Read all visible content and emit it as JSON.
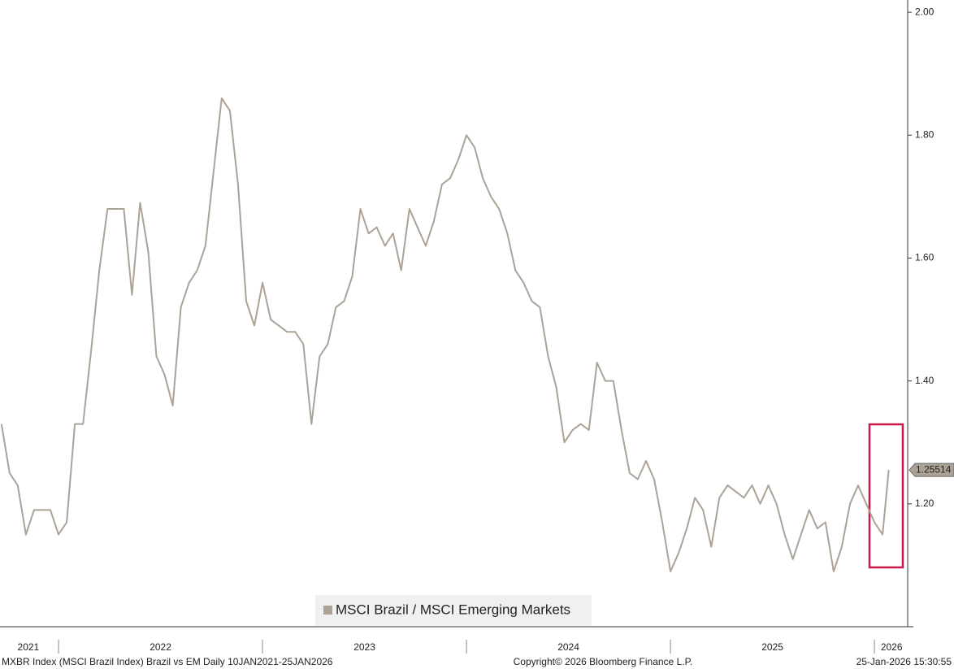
{
  "chart_data": {
    "type": "line",
    "x": [
      2021.72,
      2021.76,
      2021.8,
      2021.84,
      2021.88,
      2021.92,
      2021.96,
      2022.0,
      2022.04,
      2022.08,
      2022.12,
      2022.16,
      2022.2,
      2022.24,
      2022.28,
      2022.32,
      2022.36,
      2022.4,
      2022.44,
      2022.48,
      2022.52,
      2022.56,
      2022.6,
      2022.64,
      2022.68,
      2022.72,
      2022.76,
      2022.8,
      2022.84,
      2022.88,
      2022.92,
      2022.96,
      2023.0,
      2023.04,
      2023.08,
      2023.12,
      2023.16,
      2023.2,
      2023.24,
      2023.28,
      2023.32,
      2023.36,
      2023.4,
      2023.44,
      2023.48,
      2023.52,
      2023.56,
      2023.6,
      2023.64,
      2023.68,
      2023.72,
      2023.76,
      2023.8,
      2023.84,
      2023.88,
      2023.92,
      2023.96,
      2024.0,
      2024.04,
      2024.08,
      2024.12,
      2024.16,
      2024.2,
      2024.24,
      2024.28,
      2024.32,
      2024.36,
      2024.4,
      2024.44,
      2024.48,
      2024.52,
      2024.56,
      2024.6,
      2024.64,
      2024.68,
      2024.72,
      2024.76,
      2024.8,
      2024.84,
      2024.88,
      2024.92,
      2024.96,
      2025.0,
      2025.04,
      2025.08,
      2025.12,
      2025.16,
      2025.2,
      2025.24,
      2025.28,
      2025.32,
      2025.36,
      2025.4,
      2025.44,
      2025.48,
      2025.52,
      2025.56,
      2025.6,
      2025.64,
      2025.68,
      2025.72,
      2025.76,
      2025.8,
      2025.84,
      2025.88,
      2025.92,
      2025.96,
      2026.0,
      2026.04,
      2026.07
    ],
    "series": [
      {
        "name": "MSCI Brazil / MSCI Emerging Markets",
        "color": "#ada296",
        "values": [
          1.33,
          1.25,
          1.23,
          1.15,
          1.19,
          1.19,
          1.19,
          1.15,
          1.17,
          1.33,
          1.33,
          1.45,
          1.58,
          1.68,
          1.68,
          1.68,
          1.54,
          1.69,
          1.61,
          1.44,
          1.41,
          1.36,
          1.52,
          1.56,
          1.58,
          1.62,
          1.74,
          1.86,
          1.84,
          1.72,
          1.53,
          1.49,
          1.56,
          1.5,
          1.49,
          1.48,
          1.48,
          1.46,
          1.33,
          1.44,
          1.46,
          1.52,
          1.53,
          1.57,
          1.68,
          1.64,
          1.65,
          1.62,
          1.64,
          1.58,
          1.68,
          1.65,
          1.62,
          1.66,
          1.72,
          1.73,
          1.76,
          1.8,
          1.78,
          1.73,
          1.7,
          1.68,
          1.64,
          1.58,
          1.56,
          1.53,
          1.52,
          1.44,
          1.39,
          1.3,
          1.32,
          1.33,
          1.32,
          1.43,
          1.4,
          1.4,
          1.32,
          1.25,
          1.24,
          1.27,
          1.24,
          1.17,
          1.09,
          1.12,
          1.16,
          1.21,
          1.19,
          1.13,
          1.21,
          1.23,
          1.22,
          1.21,
          1.23,
          1.2,
          1.23,
          1.2,
          1.15,
          1.11,
          1.15,
          1.19,
          1.16,
          1.17,
          1.09,
          1.13,
          1.2,
          1.23,
          1.2,
          1.17,
          1.15,
          1.25514
        ]
      }
    ],
    "xlim": [
      2021.713,
      2026.163
    ],
    "xticks": [
      {
        "value": 2021.852,
        "label": "2021"
      },
      {
        "value": 2022.5,
        "label": "2022"
      },
      {
        "value": 2023.5,
        "label": "2023"
      },
      {
        "value": 2024.5,
        "label": "2024"
      },
      {
        "value": 2025.5,
        "label": "2025"
      },
      {
        "value": 2026.084,
        "label": "2026"
      }
    ],
    "year_separators": [
      2022,
      2023,
      2024,
      2025,
      2026
    ],
    "ylim": [
      1.0,
      2.02
    ],
    "yticks": [
      {
        "value": 1.2,
        "label": "1.20"
      },
      {
        "value": 1.4,
        "label": "1.40"
      },
      {
        "value": 1.6,
        "label": "1.60"
      },
      {
        "value": 1.8,
        "label": "1.80"
      },
      {
        "value": 2.0,
        "label": "2.00"
      }
    ],
    "legend": "bottom-center",
    "footer_left": "MXBR Index (MSCI Brazil Index) Brazil vs EM Daily 10JAN2021-25JAN2026",
    "footer_center": "Copyright© 2026 Bloomberg Finance L.P.",
    "footer_right": "25-Jan-2026 15:30:55"
  }
}
